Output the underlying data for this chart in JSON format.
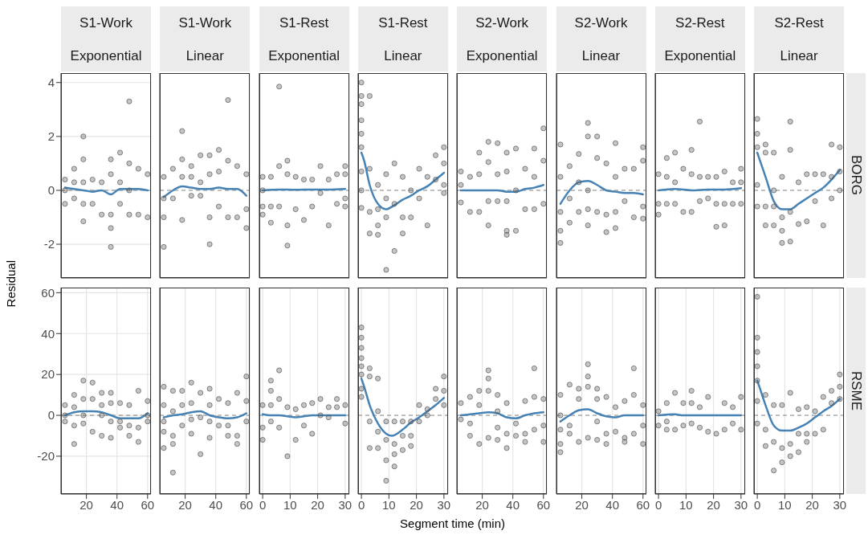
{
  "chart_data": [
    {
      "type": "scatter",
      "title": "S1-Work Exponential",
      "ylabel": "Residual",
      "xlim": [
        3.4,
        62.2
      ],
      "xticks": [
        20,
        40,
        60
      ],
      "ylim": [
        -3.25,
        4.35
      ],
      "yticks": [
        -2,
        0,
        2,
        4
      ],
      "grid": true,
      "tick_labels": "y",
      "ref_lines": [
        {
          "axis": "y",
          "value": 0,
          "color": "#7f7f7f",
          "line_style": "dashed"
        }
      ],
      "series": [
        {
          "type": "scatter",
          "marker": "circle",
          "color": "#595959",
          "x": [
            6,
            6,
            6,
            12,
            12,
            12,
            18,
            18,
            18,
            18,
            18,
            24,
            24,
            30,
            30,
            36,
            36,
            36,
            36,
            36,
            42,
            42,
            42,
            48,
            48,
            48,
            48,
            54,
            54,
            60,
            60
          ],
          "values": [
            0.4,
            0,
            -0.5,
            0.8,
            0.3,
            -0.3,
            2,
            1.15,
            0.3,
            -0.5,
            -1.15,
            0.4,
            -0.5,
            0.3,
            -0.9,
            1.15,
            0.6,
            -0.9,
            -1.4,
            -2.1,
            1.4,
            0.3,
            -0.5,
            3.3,
            1,
            0,
            -0.9,
            0.8,
            -0.9,
            0.6,
            -1
          ]
        },
        {
          "type": "line",
          "color": "#4682b4",
          "x": [
            6,
            12,
            18,
            24,
            30,
            36,
            42,
            48,
            54,
            60
          ],
          "values": [
            0.1,
            0.05,
            0,
            -0.05,
            0,
            -0.15,
            0.05,
            0.05,
            0.05,
            0
          ]
        }
      ]
    },
    {
      "type": "scatter",
      "title": "S1-Work Linear",
      "xlim": [
        3.4,
        62.2
      ],
      "xticks": [
        20,
        40,
        60
      ],
      "ylim": [
        -3.25,
        4.35
      ],
      "yticks": [
        -2,
        0,
        2,
        4
      ],
      "grid": true,
      "tick_labels": false,
      "ref_lines": [
        {
          "axis": "y",
          "value": 0,
          "color": "#7f7f7f",
          "line_style": "dashed"
        }
      ],
      "series": [
        {
          "type": "scatter",
          "marker": "circle",
          "color": "#595959",
          "x": [
            6,
            6,
            6,
            6,
            12,
            12,
            18,
            18,
            18,
            18,
            24,
            24,
            24,
            30,
            30,
            30,
            36,
            36,
            36,
            36,
            42,
            42,
            42,
            48,
            48,
            48,
            54,
            54,
            60,
            60,
            60
          ],
          "values": [
            0.5,
            -0.3,
            -1,
            -2.1,
            0.8,
            -0.3,
            2.2,
            1.15,
            0.5,
            -1.1,
            0.9,
            0.5,
            -0.2,
            1.3,
            0.3,
            -0.2,
            1.3,
            0.6,
            -1,
            -2,
            1.5,
            0.7,
            -0.6,
            3.35,
            1.1,
            -1,
            0.9,
            -1,
            0.6,
            -0.7,
            -1.4
          ]
        },
        {
          "type": "line",
          "color": "#4682b4",
          "x": [
            6,
            12,
            18,
            24,
            30,
            36,
            42,
            48,
            54,
            60
          ],
          "values": [
            -0.25,
            0,
            0.15,
            0.1,
            0.05,
            0.05,
            0.1,
            0.05,
            0.05,
            -0.2
          ]
        }
      ]
    },
    {
      "type": "scatter",
      "title": "S1-Rest Exponential",
      "xlim": [
        -1.2,
        31.5
      ],
      "xticks": [
        0,
        10,
        20,
        30
      ],
      "ylim": [
        -3.25,
        4.35
      ],
      "yticks": [
        -2,
        0,
        2,
        4
      ],
      "grid": true,
      "tick_labels": false,
      "ref_lines": [
        {
          "axis": "y",
          "value": 0,
          "color": "#7f7f7f",
          "line_style": "dashed"
        }
      ],
      "series": [
        {
          "type": "scatter",
          "marker": "circle",
          "color": "#595959",
          "x": [
            0,
            0,
            0,
            0,
            3,
            3,
            3,
            6,
            6,
            6,
            9,
            9,
            9,
            9,
            12,
            12,
            15,
            15,
            18,
            18,
            21,
            21,
            24,
            24,
            27,
            27,
            30,
            30,
            30,
            30
          ],
          "values": [
            0.5,
            0,
            -0.6,
            -0.9,
            0.5,
            -0.6,
            -1.2,
            3.85,
            0.9,
            -0.6,
            1.1,
            0.6,
            -1.3,
            -2.05,
            0.5,
            -0.7,
            0.4,
            -1.1,
            0.4,
            -0.6,
            0.9,
            -0.1,
            0.4,
            -1.3,
            0.6,
            -0.5,
            0.9,
            0.6,
            -0.3,
            -0.6
          ]
        },
        {
          "type": "line",
          "color": "#4682b4",
          "x": [
            0,
            6,
            12,
            18,
            24,
            30
          ],
          "values": [
            0,
            0.03,
            0.02,
            0.03,
            0.03,
            0.05
          ]
        }
      ]
    },
    {
      "type": "scatter",
      "title": "S1-Rest Linear",
      "xlim": [
        -1.2,
        31.5
      ],
      "xticks": [
        0,
        10,
        20,
        30
      ],
      "ylim": [
        -3.25,
        4.35
      ],
      "yticks": [
        -2,
        0,
        2,
        4
      ],
      "grid": true,
      "tick_labels": false,
      "ref_lines": [
        {
          "axis": "y",
          "value": 0,
          "color": "#7f7f7f",
          "line_style": "dashed"
        }
      ],
      "series": [
        {
          "type": "scatter",
          "marker": "circle",
          "color": "#595959",
          "x": [
            0,
            0,
            0,
            0,
            0,
            0,
            0,
            0,
            0,
            3,
            3,
            3,
            3,
            6,
            6,
            6,
            6,
            9,
            9,
            9,
            9,
            12,
            12,
            12,
            15,
            15,
            15,
            18,
            18,
            21,
            21,
            24,
            24,
            27,
            27,
            30,
            30,
            30,
            30
          ],
          "values": [
            4,
            3.5,
            3.2,
            2.6,
            2.1,
            1.6,
            0.7,
            0,
            -0.65,
            3.5,
            0.8,
            -0.8,
            -1.6,
            0.2,
            -0.7,
            -1.3,
            -1.65,
            0.6,
            -0.3,
            -1,
            -2.95,
            1,
            -0.5,
            -2.25,
            0.5,
            -1,
            -1.6,
            0,
            -1,
            0.8,
            -0.3,
            0.5,
            -1.3,
            1.3,
            0.4,
            1.6,
            1,
            0.2,
            -0.1
          ]
        },
        {
          "type": "line",
          "color": "#4682b4",
          "x": [
            0,
            1,
            3,
            6,
            9,
            12,
            15,
            18,
            21,
            24,
            27,
            30
          ],
          "values": [
            1.4,
            1.1,
            0.2,
            -0.5,
            -0.7,
            -0.55,
            -0.35,
            -0.2,
            0,
            0.15,
            0.4,
            0.65
          ]
        }
      ]
    },
    {
      "type": "scatter",
      "title": "S2-Work Exponential",
      "xlim": [
        3.4,
        62.2
      ],
      "xticks": [
        20,
        40,
        60
      ],
      "ylim": [
        -3.25,
        4.35
      ],
      "yticks": [
        -2,
        0,
        2,
        4
      ],
      "grid": true,
      "tick_labels": false,
      "ref_lines": [
        {
          "axis": "y",
          "value": 0,
          "color": "#7f7f7f",
          "line_style": "dashed"
        }
      ],
      "series": [
        {
          "type": "scatter",
          "marker": "circle",
          "color": "#595959",
          "x": [
            6,
            6,
            6,
            12,
            12,
            18,
            18,
            18,
            24,
            24,
            24,
            24,
            30,
            30,
            30,
            36,
            36,
            36,
            36,
            36,
            42,
            42,
            42,
            48,
            48,
            54,
            54,
            54,
            60,
            60,
            60
          ],
          "values": [
            0.7,
            0.2,
            -0.45,
            0.5,
            -0.8,
            1.4,
            0.6,
            -0.8,
            1.8,
            1.05,
            -0.4,
            -1.3,
            1.75,
            0.6,
            -0.4,
            1.4,
            0.7,
            -0.4,
            -1.5,
            -1.65,
            1.55,
            0,
            -1.5,
            0.8,
            -0.7,
            1.55,
            0.5,
            -0.7,
            2.3,
            1.1,
            -0.5
          ]
        },
        {
          "type": "line",
          "color": "#4682b4",
          "x": [
            6,
            12,
            18,
            24,
            30,
            36,
            42,
            48,
            54,
            60
          ],
          "values": [
            0,
            0,
            0,
            0,
            0,
            -0.05,
            -0.05,
            0.05,
            0.1,
            0.2
          ]
        }
      ]
    },
    {
      "type": "scatter",
      "title": "S2-Work Linear",
      "xlim": [
        3.4,
        62.2
      ],
      "xticks": [
        20,
        40,
        60
      ],
      "ylim": [
        -3.25,
        4.35
      ],
      "yticks": [
        -2,
        0,
        2,
        4
      ],
      "grid": true,
      "tick_labels": false,
      "ref_lines": [
        {
          "axis": "y",
          "value": 0,
          "color": "#7f7f7f",
          "line_style": "dashed"
        }
      ],
      "series": [
        {
          "type": "scatter",
          "marker": "circle",
          "color": "#595959",
          "x": [
            6,
            6,
            6,
            6,
            6,
            12,
            12,
            12,
            18,
            18,
            18,
            24,
            24,
            24,
            24,
            24,
            30,
            30,
            30,
            36,
            36,
            36,
            42,
            42,
            42,
            42,
            48,
            48,
            54,
            54,
            60,
            60,
            60,
            60
          ],
          "values": [
            1.7,
            0.5,
            -0.8,
            -1.5,
            -1.95,
            0.9,
            -0.3,
            -1.2,
            1.35,
            0.3,
            -0.8,
            2.5,
            2,
            0,
            -0.7,
            -1.3,
            2,
            1.2,
            -0.8,
            1,
            -0.9,
            -1.55,
            1.75,
            0.5,
            -0.8,
            -1.4,
            0.8,
            -0.4,
            0.8,
            -1,
            1.6,
            1.1,
            -0.6,
            -1.05
          ]
        },
        {
          "type": "line",
          "color": "#4682b4",
          "x": [
            6,
            12,
            18,
            24,
            30,
            36,
            42,
            48,
            54,
            60
          ],
          "values": [
            -0.5,
            0,
            0.3,
            0.35,
            0.2,
            0,
            -0.05,
            -0.1,
            -0.1,
            -0.15
          ]
        }
      ]
    },
    {
      "type": "scatter",
      "title": "S2-Rest Exponential",
      "xlim": [
        -1.2,
        31.5
      ],
      "xticks": [
        0,
        10,
        20,
        30
      ],
      "ylim": [
        -3.25,
        4.35
      ],
      "yticks": [
        -2,
        0,
        2,
        4
      ],
      "grid": true,
      "tick_labels": false,
      "ref_lines": [
        {
          "axis": "y",
          "value": 0,
          "color": "#7f7f7f",
          "line_style": "dashed"
        }
      ],
      "series": [
        {
          "type": "scatter",
          "marker": "circle",
          "color": "#595959",
          "x": [
            0,
            0,
            0,
            3,
            3,
            3,
            6,
            6,
            6,
            9,
            9,
            12,
            12,
            12,
            15,
            15,
            15,
            18,
            18,
            21,
            21,
            21,
            24,
            24,
            24,
            27,
            27,
            30,
            30,
            30
          ],
          "values": [
            0.6,
            -0.5,
            -0.9,
            1.2,
            0.5,
            -0.5,
            1.4,
            0.3,
            -0.5,
            0.8,
            -0.8,
            1.5,
            0.6,
            -0.8,
            2.55,
            0.5,
            -0.4,
            0.5,
            -0.3,
            0.5,
            -1.35,
            -0.5,
            0.7,
            -1.3,
            -0.5,
            0.3,
            -0.5,
            0.8,
            0.3,
            -0.5
          ]
        },
        {
          "type": "line",
          "color": "#4682b4",
          "x": [
            0,
            6,
            12,
            18,
            24,
            30
          ],
          "values": [
            0,
            0.05,
            0,
            0.03,
            0.03,
            0.08
          ]
        }
      ]
    },
    {
      "type": "scatter",
      "title": "S2-Rest Linear",
      "annotations": [
        "BORG"
      ],
      "xlim": [
        -1.2,
        31.5
      ],
      "xticks": [
        0,
        10,
        20,
        30
      ],
      "ylim": [
        -3.25,
        4.35
      ],
      "yticks": [
        -2,
        0,
        2,
        4
      ],
      "grid": true,
      "tick_labels": false,
      "ref_lines": [
        {
          "axis": "y",
          "value": 0,
          "color": "#7f7f7f",
          "line_style": "dashed"
        }
      ],
      "series": [
        {
          "type": "scatter",
          "marker": "circle",
          "color": "#595959",
          "x": [
            0,
            0,
            0,
            0,
            0,
            3,
            3,
            3,
            3,
            6,
            6,
            6,
            6,
            9,
            9,
            9,
            9,
            12,
            12,
            12,
            12,
            15,
            15,
            18,
            18,
            21,
            21,
            24,
            24,
            27,
            27,
            27,
            30,
            30,
            30
          ],
          "values": [
            2.65,
            2.1,
            1.6,
            0.2,
            -0.6,
            1.7,
            1.4,
            -0.6,
            -1.3,
            1.4,
            0,
            -0.6,
            -1.3,
            0.5,
            -1,
            -1.5,
            -1.95,
            2.55,
            1.5,
            -0.8,
            -1.9,
            0.3,
            -1.25,
            0.6,
            -1.15,
            0.6,
            -0.4,
            0.6,
            -1.3,
            1.7,
            0.5,
            -0.3,
            1.6,
            0.7,
            0
          ]
        },
        {
          "type": "line",
          "color": "#4682b4",
          "x": [
            0,
            1,
            3,
            6,
            9,
            12,
            15,
            18,
            21,
            24,
            27,
            30
          ],
          "values": [
            1.4,
            1.1,
            0.5,
            -0.4,
            -0.7,
            -0.7,
            -0.5,
            -0.3,
            -0.1,
            0.1,
            0.4,
            0.75
          ]
        }
      ]
    },
    {
      "type": "scatter",
      "xlim": [
        3.4,
        62.2
      ],
      "xticks": [
        20,
        40,
        60
      ],
      "ylim": [
        -38.5,
        62.5
      ],
      "yticks": [
        -20,
        0,
        20,
        40,
        60
      ],
      "grid": true,
      "ref_lines": [
        {
          "axis": "y",
          "value": 0,
          "color": "#7f7f7f",
          "line_style": "dashed"
        }
      ],
      "series": [
        {
          "type": "scatter",
          "marker": "circle",
          "color": "#595959",
          "x": [
            6,
            6,
            6,
            12,
            12,
            12,
            12,
            18,
            18,
            18,
            18,
            24,
            24,
            24,
            30,
            30,
            30,
            30,
            36,
            36,
            36,
            36,
            42,
            42,
            42,
            48,
            48,
            48,
            54,
            54,
            54,
            60,
            60,
            60
          ],
          "values": [
            5,
            0,
            -3,
            10,
            4,
            -5,
            -14,
            17,
            8,
            0,
            -4,
            16,
            8,
            -8,
            11,
            5,
            0,
            -10,
            11,
            6,
            -3,
            -11,
            6,
            -3,
            -6,
            5,
            -5,
            -10,
            12,
            -6,
            -13,
            7,
            0,
            -3
          ]
        },
        {
          "type": "line",
          "color": "#4682b4",
          "x": [
            6,
            12,
            18,
            24,
            30,
            36,
            42,
            48,
            54,
            60
          ],
          "values": [
            0,
            1.5,
            2,
            2,
            1.5,
            0,
            -1.5,
            -1.5,
            -1.5,
            1
          ]
        }
      ]
    },
    {
      "type": "scatter",
      "xlim": [
        3.4,
        62.2
      ],
      "xticks": [
        20,
        40,
        60
      ],
      "ylim": [
        -38.5,
        62.5
      ],
      "yticks": [
        -20,
        0,
        20,
        40,
        60
      ],
      "grid": true,
      "tick_labels": "x",
      "ref_lines": [
        {
          "axis": "y",
          "value": 0,
          "color": "#7f7f7f",
          "line_style": "dashed"
        }
      ],
      "series": [
        {
          "type": "scatter",
          "marker": "circle",
          "color": "#595959",
          "x": [
            6,
            6,
            6,
            6,
            6,
            12,
            12,
            12,
            12,
            12,
            18,
            18,
            18,
            24,
            24,
            24,
            24,
            30,
            30,
            30,
            36,
            36,
            36,
            36,
            42,
            42,
            48,
            48,
            48,
            54,
            54,
            54,
            60,
            60,
            60
          ],
          "values": [
            14,
            5,
            -3,
            -8,
            -16,
            12,
            2,
            -10,
            -14,
            -28,
            12,
            5,
            -5,
            16,
            6,
            -2,
            -9,
            11,
            -1,
            -19,
            13,
            5,
            -3,
            -11,
            8,
            -5,
            6,
            -5,
            -10,
            11,
            -10,
            -14,
            19,
            7,
            -3
          ]
        },
        {
          "type": "line",
          "color": "#4682b4",
          "x": [
            6,
            12,
            18,
            24,
            30,
            36,
            42,
            48,
            54,
            60
          ],
          "values": [
            -1,
            0,
            0.5,
            1.5,
            2,
            0,
            -1,
            -1.5,
            -1,
            1
          ]
        }
      ]
    },
    {
      "type": "scatter",
      "xlim": [
        -1.2,
        31.5
      ],
      "xticks": [
        0,
        10,
        20,
        30
      ],
      "ylim": [
        -38.5,
        62.5
      ],
      "yticks": [
        -20,
        0,
        20,
        40,
        60
      ],
      "grid": true,
      "tick_labels": "x",
      "ref_lines": [
        {
          "axis": "y",
          "value": 0,
          "color": "#7f7f7f",
          "line_style": "dashed"
        }
      ],
      "series": [
        {
          "type": "scatter",
          "marker": "circle",
          "color": "#595959",
          "x": [
            0,
            0,
            0,
            3,
            3,
            3,
            3,
            6,
            6,
            6,
            9,
            9,
            12,
            12,
            15,
            15,
            18,
            18,
            21,
            21,
            24,
            24,
            27,
            27,
            30,
            30
          ],
          "values": [
            5,
            -6,
            -12,
            17,
            12,
            5,
            -3,
            22,
            8,
            -6,
            4,
            -20,
            3,
            -12,
            5,
            -5,
            6,
            -9,
            8,
            0,
            4,
            -1,
            8,
            4,
            5,
            -4
          ]
        },
        {
          "type": "line",
          "color": "#4682b4",
          "x": [
            0,
            3,
            6,
            9,
            12,
            15,
            18,
            21,
            24,
            27,
            30
          ],
          "values": [
            0.5,
            0,
            0,
            -0.5,
            -1,
            -0.5,
            0,
            0,
            0,
            0,
            0
          ]
        }
      ]
    },
    {
      "type": "scatter",
      "xlabel": "Segment time (min)",
      "xlim": [
        -1.2,
        31.5
      ],
      "xticks": [
        0,
        10,
        20,
        30
      ],
      "ylim": [
        -38.5,
        62.5
      ],
      "yticks": [
        -20,
        0,
        20,
        40,
        60
      ],
      "grid": true,
      "tick_labels": "x",
      "ref_lines": [
        {
          "axis": "y",
          "value": 0,
          "color": "#7f7f7f",
          "line_style": "dashed"
        }
      ],
      "series": [
        {
          "type": "scatter",
          "marker": "circle",
          "color": "#595959",
          "x": [
            0,
            0,
            0,
            0,
            0,
            0,
            0,
            0,
            3,
            3,
            3,
            3,
            6,
            6,
            6,
            6,
            9,
            9,
            9,
            9,
            12,
            12,
            12,
            12,
            15,
            15,
            15,
            18,
            18,
            18,
            21,
            21,
            24,
            24,
            27,
            27,
            30,
            30,
            30
          ],
          "values": [
            43,
            38,
            33,
            28,
            24,
            20,
            13,
            9,
            23,
            19,
            -3,
            -16,
            18,
            2,
            -8,
            -16,
            -3,
            -12,
            -22,
            -32,
            -3,
            -14,
            -19,
            -25,
            -3,
            -10,
            -17,
            -3,
            -10,
            -15,
            5,
            -3,
            3,
            0,
            13,
            8,
            19,
            12,
            5
          ]
        },
        {
          "type": "line",
          "color": "#4682b4",
          "x": [
            0,
            1,
            3,
            6,
            9,
            11,
            15,
            18,
            21,
            24,
            27,
            30
          ],
          "values": [
            18,
            14,
            5,
            -4,
            -9,
            -10,
            -7,
            -3.5,
            -1,
            2,
            5,
            8.5
          ]
        }
      ]
    },
    {
      "type": "scatter",
      "xlim": [
        3.4,
        62.2
      ],
      "xticks": [
        20,
        40,
        60
      ],
      "ylim": [
        -38.5,
        62.5
      ],
      "yticks": [
        -20,
        0,
        20,
        40,
        60
      ],
      "grid": true,
      "tick_labels": "x",
      "ref_lines": [
        {
          "axis": "y",
          "value": 0,
          "color": "#7f7f7f",
          "line_style": "dashed"
        }
      ],
      "series": [
        {
          "type": "scatter",
          "marker": "circle",
          "color": "#595959",
          "x": [
            6,
            6,
            12,
            12,
            12,
            18,
            18,
            18,
            24,
            24,
            24,
            24,
            30,
            30,
            30,
            30,
            36,
            36,
            36,
            42,
            42,
            48,
            48,
            48,
            54,
            54,
            54,
            60,
            60,
            60
          ],
          "values": [
            6,
            -2,
            9,
            -4,
            -10,
            12,
            5,
            -14,
            22,
            18,
            12,
            -11,
            10,
            2,
            -6,
            -12,
            6,
            -9,
            -16,
            -4,
            -10,
            7,
            -9,
            -13,
            23,
            9,
            -7,
            8,
            -5,
            -13
          ]
        },
        {
          "type": "line",
          "color": "#4682b4",
          "x": [
            6,
            12,
            18,
            24,
            30,
            36,
            42,
            48,
            54,
            60
          ],
          "values": [
            0,
            0.5,
            1,
            1.5,
            1,
            -1,
            -1.5,
            0,
            1,
            1.5
          ]
        }
      ]
    },
    {
      "type": "scatter",
      "xlim": [
        3.4,
        62.2
      ],
      "xticks": [
        20,
        40,
        60
      ],
      "ylim": [
        -38.5,
        62.5
      ],
      "yticks": [
        -20,
        0,
        20,
        40,
        60
      ],
      "grid": true,
      "tick_labels": "x",
      "ref_lines": [
        {
          "axis": "y",
          "value": 0,
          "color": "#7f7f7f",
          "line_style": "dashed"
        }
      ],
      "series": [
        {
          "type": "scatter",
          "marker": "circle",
          "color": "#595959",
          "x": [
            6,
            6,
            6,
            6,
            6,
            12,
            12,
            12,
            18,
            18,
            18,
            24,
            24,
            24,
            24,
            30,
            30,
            30,
            30,
            36,
            36,
            36,
            42,
            42,
            48,
            48,
            48,
            54,
            54,
            54,
            60,
            60,
            60
          ],
          "values": [
            10,
            0,
            -7,
            -14,
            -18,
            15,
            -5,
            -9,
            13,
            8,
            -13,
            25,
            19,
            14,
            -11,
            13,
            8,
            -3,
            -12,
            9,
            -9,
            -14,
            4,
            -8,
            7,
            -11,
            -13,
            23,
            10,
            -9,
            5,
            -5,
            -14
          ]
        },
        {
          "type": "line",
          "color": "#4682b4",
          "x": [
            6,
            12,
            18,
            24,
            30,
            36,
            42,
            48,
            54,
            60
          ],
          "values": [
            -3,
            0,
            2.5,
            3,
            1,
            -0.5,
            -1,
            0,
            0,
            0
          ]
        }
      ]
    },
    {
      "type": "scatter",
      "xlim": [
        -1.2,
        31.5
      ],
      "xticks": [
        0,
        10,
        20,
        30
      ],
      "ylim": [
        -38.5,
        62.5
      ],
      "yticks": [
        -20,
        0,
        20,
        40,
        60
      ],
      "grid": true,
      "tick_labels": "x",
      "ref_lines": [
        {
          "axis": "y",
          "value": 0,
          "color": "#7f7f7f",
          "line_style": "dashed"
        }
      ],
      "series": [
        {
          "type": "scatter",
          "marker": "circle",
          "color": "#595959",
          "x": [
            0,
            0,
            3,
            3,
            3,
            6,
            6,
            9,
            9,
            12,
            12,
            12,
            15,
            15,
            18,
            18,
            21,
            24,
            24,
            27,
            27,
            30,
            30
          ],
          "values": [
            2,
            -5,
            6,
            -3,
            -7,
            11,
            -7,
            6,
            -5,
            12,
            6,
            -4,
            4,
            -6,
            9,
            -8,
            -9,
            6,
            -7,
            4,
            -4,
            9,
            -7
          ]
        },
        {
          "type": "line",
          "color": "#4682b4",
          "x": [
            0,
            6,
            9,
            12,
            18,
            24,
            30
          ],
          "values": [
            0,
            0.5,
            0,
            0,
            0,
            0,
            0
          ]
        }
      ]
    },
    {
      "type": "scatter",
      "annotations": [
        "RSME"
      ],
      "xlim": [
        -1.2,
        31.5
      ],
      "xticks": [
        0,
        10,
        20,
        30
      ],
      "ylim": [
        -38.5,
        62.5
      ],
      "yticks": [
        -20,
        0,
        20,
        40,
        60
      ],
      "grid": true,
      "tick_labels": "x",
      "ref_lines": [
        {
          "axis": "y",
          "value": 0,
          "color": "#7f7f7f",
          "line_style": "dashed"
        }
      ],
      "series": [
        {
          "type": "scatter",
          "marker": "circle",
          "color": "#595959",
          "x": [
            0,
            0,
            0,
            0,
            0,
            0,
            0,
            3,
            3,
            3,
            6,
            6,
            6,
            9,
            9,
            9,
            12,
            12,
            12,
            15,
            15,
            15,
            18,
            18,
            18,
            21,
            21,
            24,
            24,
            27,
            27,
            30,
            30,
            30
          ],
          "values": [
            58,
            38,
            31,
            24,
            17,
            7,
            -4,
            10,
            -7,
            -15,
            5,
            -13,
            -27,
            5,
            -16,
            -23,
            11,
            -14,
            -20,
            3,
            -9,
            -18,
            4,
            -9,
            -13,
            2,
            -9,
            9,
            -7,
            12,
            6,
            20,
            14,
            8
          ]
        },
        {
          "type": "line",
          "color": "#4682b4",
          "x": [
            0,
            1,
            3,
            6,
            9,
            12,
            15,
            18,
            21,
            24,
            27,
            30
          ],
          "values": [
            17,
            13,
            5,
            -5,
            -7.5,
            -7.5,
            -6,
            -4,
            -1,
            2,
            4.5,
            8
          ]
        }
      ]
    }
  ]
}
